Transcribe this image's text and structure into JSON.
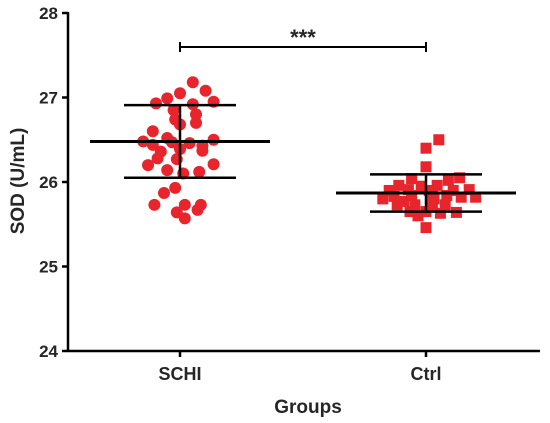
{
  "chart_data": {
    "type": "scatter",
    "title": "",
    "xlabel": "Groups",
    "ylabel": "SOD (U/mL)",
    "ylim": [
      24,
      28
    ],
    "yticks": [
      24,
      25,
      26,
      27,
      28
    ],
    "categories": [
      "SCHI",
      "Ctrl"
    ],
    "marker_color": "#e8242c",
    "line_color": "#000000",
    "significance": "***",
    "series": [
      {
        "category": "SCHI",
        "marker": "circle",
        "mean": 26.48,
        "sd_upper": 26.91,
        "sd_lower": 26.05,
        "points": [
          [
            -0.15,
            26.93
          ],
          [
            -0.08,
            26.99
          ],
          [
            0.0,
            27.05
          ],
          [
            0.08,
            27.18
          ],
          [
            0.16,
            27.08
          ],
          [
            -0.04,
            26.85
          ],
          [
            0.08,
            26.92
          ],
          [
            0.21,
            26.95
          ],
          [
            -0.03,
            26.74
          ],
          [
            0.1,
            26.8
          ],
          [
            0.0,
            26.68
          ],
          [
            0.1,
            26.7
          ],
          [
            -0.17,
            26.6
          ],
          [
            -0.08,
            26.52
          ],
          [
            -0.23,
            26.48
          ],
          [
            0.21,
            26.5
          ],
          [
            -0.17,
            26.44
          ],
          [
            -0.05,
            26.47
          ],
          [
            0.06,
            26.46
          ],
          [
            0.14,
            26.43
          ],
          [
            0.0,
            26.39
          ],
          [
            -0.02,
            26.27
          ],
          [
            -0.12,
            26.36
          ],
          [
            0.14,
            26.37
          ],
          [
            -0.14,
            26.28
          ],
          [
            -0.2,
            26.2
          ],
          [
            0.21,
            26.21
          ],
          [
            -0.08,
            26.14
          ],
          [
            0.12,
            26.12
          ],
          [
            0.02,
            26.1
          ],
          [
            -0.03,
            25.93
          ],
          [
            -0.1,
            25.87
          ],
          [
            -0.16,
            25.73
          ],
          [
            0.03,
            25.73
          ],
          [
            0.13,
            25.73
          ],
          [
            -0.02,
            25.64
          ],
          [
            0.11,
            25.67
          ],
          [
            0.03,
            25.57
          ]
        ]
      },
      {
        "category": "Ctrl",
        "marker": "square",
        "mean": 25.87,
        "sd_upper": 26.09,
        "sd_lower": 25.65,
        "points": [
          [
            0.08,
            26.5
          ],
          [
            0.0,
            26.4
          ],
          [
            0.0,
            26.18
          ],
          [
            -0.09,
            26.04
          ],
          [
            0.14,
            26.02
          ],
          [
            0.21,
            26.05
          ],
          [
            -0.17,
            25.96
          ],
          [
            -0.03,
            25.95
          ],
          [
            0.07,
            25.96
          ],
          [
            -0.23,
            25.9
          ],
          [
            -0.11,
            25.91
          ],
          [
            0.02,
            25.9
          ],
          [
            0.17,
            25.9
          ],
          [
            0.27,
            25.91
          ],
          [
            -0.2,
            25.83
          ],
          [
            -0.09,
            25.84
          ],
          [
            0.04,
            25.84
          ],
          [
            0.13,
            25.84
          ],
          [
            0.22,
            25.82
          ],
          [
            0.31,
            25.82
          ],
          [
            -0.27,
            25.8
          ],
          [
            -0.14,
            25.77
          ],
          [
            0.05,
            25.8
          ],
          [
            -0.18,
            25.73
          ],
          [
            -0.07,
            25.73
          ],
          [
            0.04,
            25.72
          ],
          [
            0.12,
            25.73
          ],
          [
            -0.1,
            25.65
          ],
          [
            0.0,
            25.65
          ],
          [
            -0.05,
            25.6
          ],
          [
            0.09,
            25.63
          ],
          [
            0.19,
            25.64
          ],
          [
            0.0,
            25.46
          ]
        ]
      }
    ]
  }
}
